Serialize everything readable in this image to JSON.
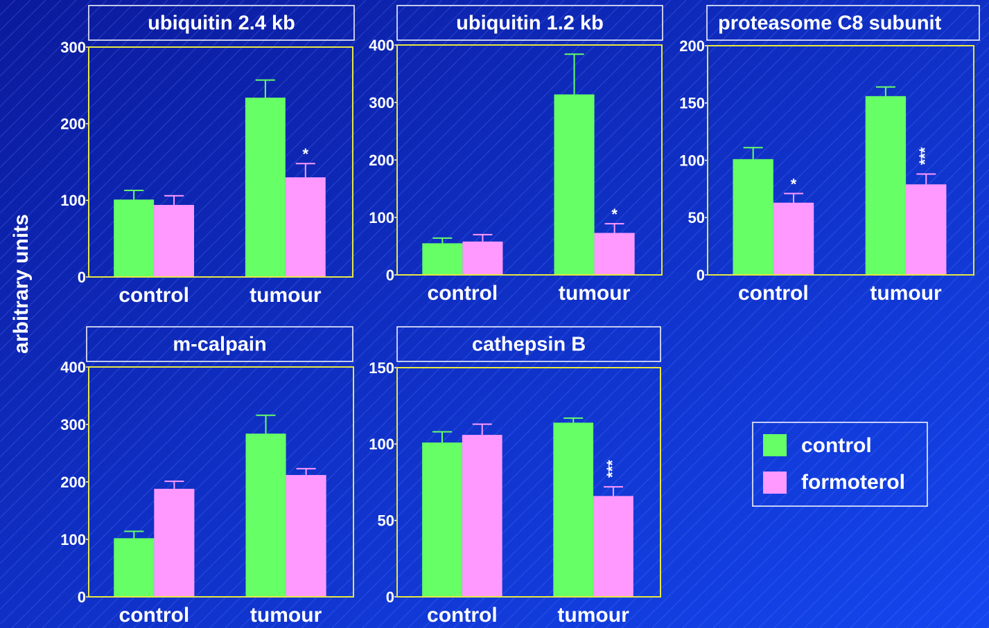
{
  "y_label": "arbitrary units",
  "chart_data": [
    {
      "type": "bar",
      "title": "ubiquitin 2.4 kb",
      "categories": [
        "control",
        "tumour"
      ],
      "series": [
        {
          "name": "control",
          "color": "#66ff66",
          "values": [
            101,
            234
          ],
          "errors": [
            12,
            23
          ]
        },
        {
          "name": "formoterol",
          "color": "#ff99ff",
          "values": [
            94,
            130
          ],
          "errors": [
            12,
            18
          ]
        }
      ],
      "ylim": [
        0,
        300
      ],
      "yticks": [
        0,
        100,
        200,
        300
      ],
      "annotations": [
        {
          "text": "*",
          "series": 1,
          "index": 1,
          "vertical": false
        }
      ]
    },
    {
      "type": "bar",
      "title": "ubiquitin 1.2 kb",
      "categories": [
        "control",
        "tumour"
      ],
      "series": [
        {
          "name": "control",
          "color": "#66ff66",
          "values": [
            55,
            314
          ],
          "errors": [
            9,
            70
          ]
        },
        {
          "name": "formoterol",
          "color": "#ff99ff",
          "values": [
            58,
            73
          ],
          "errors": [
            12,
            16
          ]
        }
      ],
      "ylim": [
        0,
        400
      ],
      "yticks": [
        0,
        100,
        200,
        300,
        400
      ],
      "annotations": [
        {
          "text": "*",
          "series": 1,
          "index": 1,
          "vertical": false
        }
      ]
    },
    {
      "type": "bar",
      "title": "proteasome C8 subunit",
      "categories": [
        "control",
        "tumour"
      ],
      "series": [
        {
          "name": "control",
          "color": "#66ff66",
          "values": [
            101,
            156
          ],
          "errors": [
            10,
            8
          ]
        },
        {
          "name": "formoterol",
          "color": "#ff99ff",
          "values": [
            63,
            79
          ],
          "errors": [
            8,
            9
          ]
        }
      ],
      "ylim": [
        0,
        200
      ],
      "yticks": [
        0,
        50,
        100,
        150,
        200
      ],
      "annotations": [
        {
          "text": "*",
          "series": 1,
          "index": 0,
          "vertical": false
        },
        {
          "text": "***",
          "series": 1,
          "index": 1,
          "vertical": true
        }
      ]
    },
    {
      "type": "bar",
      "title": "m-calpain",
      "categories": [
        "control",
        "tumour"
      ],
      "series": [
        {
          "name": "control",
          "color": "#66ff66",
          "values": [
            102,
            284
          ],
          "errors": [
            12,
            32
          ]
        },
        {
          "name": "formoterol",
          "color": "#ff99ff",
          "values": [
            188,
            212
          ],
          "errors": [
            13,
            11
          ]
        }
      ],
      "ylim": [
        0,
        400
      ],
      "yticks": [
        0,
        100,
        200,
        300,
        400
      ],
      "annotations": []
    },
    {
      "type": "bar",
      "title": "cathepsin B",
      "categories": [
        "control",
        "tumour"
      ],
      "series": [
        {
          "name": "control",
          "color": "#66ff66",
          "values": [
            101,
            114
          ],
          "errors": [
            7,
            3
          ]
        },
        {
          "name": "formoterol",
          "color": "#ff99ff",
          "values": [
            106,
            66
          ],
          "errors": [
            7,
            6
          ]
        }
      ],
      "ylim": [
        0,
        150
      ],
      "yticks": [
        0,
        50,
        100,
        150
      ],
      "annotations": [
        {
          "text": "***",
          "series": 1,
          "index": 1,
          "vertical": true
        }
      ]
    }
  ]
}
